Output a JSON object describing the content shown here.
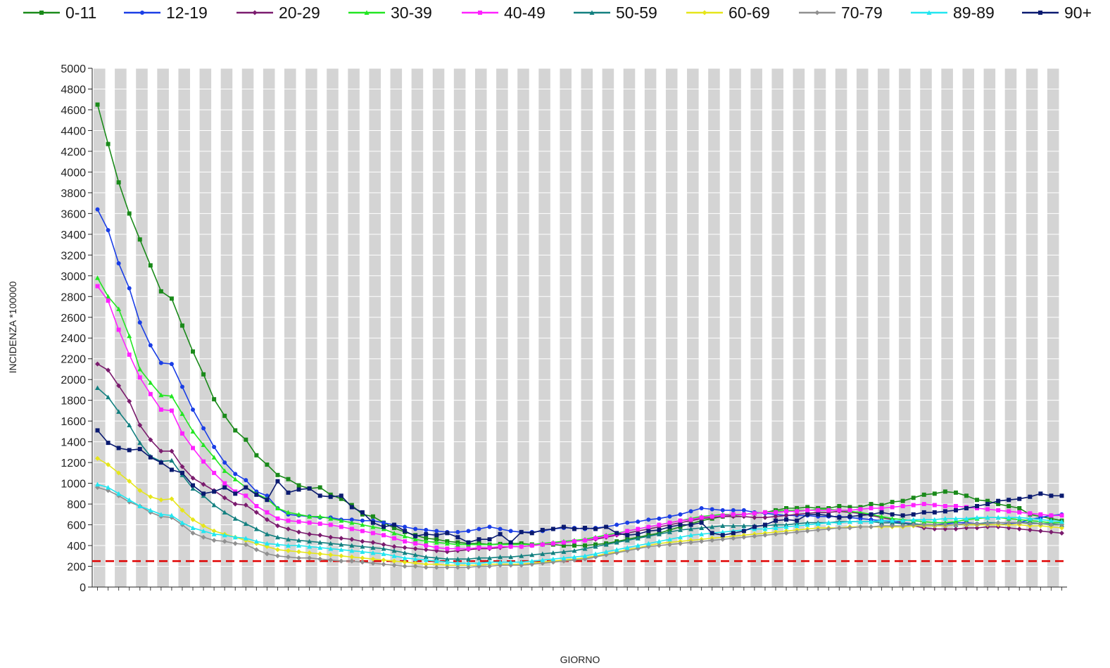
{
  "chart_data": {
    "type": "line",
    "title": "",
    "xlabel": "GIORNO",
    "ylabel": "INCIDENZA *100000",
    "ylim": [
      0,
      5000
    ],
    "yticks": [
      0,
      200,
      400,
      600,
      800,
      1000,
      1200,
      1400,
      1600,
      1800,
      2000,
      2200,
      2400,
      2600,
      2800,
      3000,
      3200,
      3400,
      3600,
      3800,
      4000,
      4200,
      4400,
      4600,
      4800,
      5000
    ],
    "grid": "alternating vertical bands",
    "legend_position": "top",
    "threshold": {
      "value": 250,
      "color": "#e00000",
      "style": "dashed"
    },
    "num_points": 92,
    "series": [
      {
        "name": "0-11",
        "color": "#1a8a1a",
        "marker": "square",
        "values": [
          4650,
          4270,
          3900,
          3600,
          3350,
          3100,
          2850,
          2780,
          2520,
          2270,
          2050,
          1810,
          1650,
          1510,
          1420,
          1270,
          1180,
          1080,
          1040,
          980,
          950,
          960,
          890,
          850,
          790,
          700,
          680,
          620,
          570,
          530,
          500,
          470,
          460,
          440,
          430,
          420,
          420,
          410,
          415,
          420,
          420,
          410,
          410,
          410,
          400,
          400,
          400,
          410,
          420,
          440,
          460,
          480,
          500,
          520,
          550,
          580,
          610,
          640,
          660,
          680,
          690,
          700,
          710,
          720,
          740,
          760,
          760,
          770,
          760,
          760,
          780,
          770,
          770,
          800,
          790,
          820,
          830,
          860,
          890,
          900,
          920,
          910,
          880,
          840,
          830,
          800,
          780,
          760,
          700,
          680,
          660,
          640
        ]
      },
      {
        "name": "12-19",
        "color": "#1a3ee6",
        "marker": "circle",
        "values": [
          3640,
          3440,
          3120,
          2880,
          2550,
          2330,
          2160,
          2150,
          1930,
          1710,
          1530,
          1350,
          1200,
          1090,
          1030,
          920,
          880,
          760,
          700,
          690,
          680,
          670,
          670,
          650,
          650,
          640,
          640,
          620,
          600,
          580,
          560,
          550,
          540,
          530,
          530,
          540,
          560,
          580,
          560,
          540,
          530,
          530,
          540,
          560,
          570,
          570,
          560,
          570,
          580,
          600,
          620,
          630,
          650,
          660,
          680,
          700,
          730,
          760,
          750,
          740,
          740,
          740,
          720,
          710,
          700,
          690,
          690,
          690,
          680,
          680,
          680,
          670,
          660,
          650,
          640,
          630,
          620,
          610,
          600,
          600,
          610,
          620,
          620,
          610,
          600,
          600,
          610,
          620,
          650,
          670,
          690,
          700
        ]
      },
      {
        "name": "20-29",
        "color": "#7b1c6e",
        "marker": "diamond",
        "values": [
          2150,
          2090,
          1940,
          1790,
          1560,
          1420,
          1310,
          1310,
          1160,
          1050,
          990,
          930,
          860,
          800,
          790,
          720,
          650,
          590,
          560,
          530,
          510,
          500,
          480,
          470,
          460,
          440,
          430,
          410,
          390,
          380,
          370,
          360,
          350,
          340,
          350,
          360,
          370,
          370,
          380,
          390,
          390,
          400,
          410,
          420,
          430,
          440,
          450,
          460,
          480,
          500,
          520,
          540,
          560,
          580,
          600,
          620,
          640,
          660,
          670,
          680,
          680,
          680,
          670,
          670,
          680,
          690,
          700,
          710,
          720,
          720,
          730,
          720,
          710,
          690,
          670,
          650,
          620,
          590,
          570,
          560,
          560,
          560,
          570,
          570,
          580,
          580,
          570,
          560,
          550,
          540,
          530,
          520
        ]
      },
      {
        "name": "30-39",
        "color": "#22e622",
        "marker": "triangle",
        "values": [
          2980,
          2800,
          2680,
          2420,
          2100,
          1970,
          1850,
          1840,
          1670,
          1500,
          1370,
          1250,
          1120,
          1040,
          960,
          900,
          850,
          760,
          720,
          700,
          680,
          680,
          660,
          640,
          620,
          600,
          580,
          560,
          520,
          490,
          460,
          440,
          430,
          420,
          410,
          410,
          410,
          410,
          410,
          410,
          410,
          410,
          420,
          430,
          440,
          450,
          460,
          480,
          500,
          520,
          540,
          560,
          580,
          600,
          620,
          640,
          660,
          680,
          690,
          700,
          700,
          700,
          710,
          720,
          730,
          740,
          740,
          740,
          750,
          750,
          740,
          730,
          720,
          700,
          680,
          660,
          650,
          640,
          630,
          620,
          620,
          630,
          650,
          660,
          670,
          670,
          660,
          650,
          640,
          630,
          620,
          620
        ]
      },
      {
        "name": "40-49",
        "color": "#ff22ff",
        "marker": "square",
        "values": [
          2900,
          2760,
          2480,
          2240,
          2020,
          1860,
          1710,
          1700,
          1480,
          1340,
          1210,
          1100,
          1000,
          920,
          880,
          780,
          720,
          660,
          640,
          630,
          620,
          610,
          600,
          580,
          560,
          540,
          520,
          500,
          470,
          440,
          420,
          400,
          380,
          370,
          370,
          370,
          380,
          380,
          390,
          390,
          390,
          400,
          410,
          420,
          430,
          440,
          450,
          470,
          490,
          510,
          540,
          560,
          580,
          600,
          620,
          640,
          650,
          670,
          680,
          690,
          700,
          700,
          710,
          720,
          720,
          730,
          730,
          740,
          740,
          740,
          740,
          740,
          750,
          760,
          760,
          770,
          780,
          790,
          800,
          790,
          780,
          780,
          770,
          760,
          750,
          740,
          730,
          720,
          710,
          700,
          690,
          690
        ]
      },
      {
        "name": "50-59",
        "color": "#138080",
        "marker": "triangle",
        "values": [
          1920,
          1830,
          1690,
          1560,
          1390,
          1260,
          1210,
          1220,
          1080,
          950,
          880,
          790,
          720,
          660,
          610,
          560,
          510,
          480,
          460,
          450,
          440,
          430,
          420,
          410,
          400,
          390,
          380,
          370,
          350,
          330,
          310,
          290,
          280,
          270,
          270,
          270,
          280,
          280,
          290,
          290,
          300,
          310,
          320,
          330,
          340,
          350,
          370,
          390,
          410,
          430,
          450,
          470,
          490,
          510,
          530,
          550,
          560,
          570,
          580,
          590,
          590,
          590,
          590,
          590,
          600,
          600,
          610,
          620,
          620,
          620,
          630,
          630,
          630,
          630,
          620,
          620,
          610,
          610,
          600,
          600,
          600,
          600,
          610,
          610,
          620,
          620,
          620,
          620,
          620,
          610,
          610,
          600
        ]
      },
      {
        "name": "60-69",
        "color": "#e6e61a",
        "marker": "diamond",
        "values": [
          1240,
          1180,
          1100,
          1020,
          930,
          870,
          840,
          850,
          740,
          650,
          590,
          540,
          510,
          480,
          450,
          420,
          390,
          360,
          350,
          340,
          330,
          320,
          310,
          300,
          290,
          280,
          270,
          260,
          250,
          240,
          230,
          220,
          220,
          210,
          210,
          210,
          210,
          220,
          220,
          220,
          220,
          230,
          240,
          250,
          260,
          270,
          280,
          300,
          320,
          340,
          360,
          380,
          400,
          420,
          430,
          440,
          450,
          460,
          470,
          480,
          490,
          500,
          510,
          520,
          530,
          540,
          550,
          560,
          570,
          570,
          570,
          580,
          580,
          580,
          580,
          580,
          580,
          590,
          590,
          590,
          590,
          600,
          600,
          600,
          600,
          600,
          600,
          600,
          590,
          590,
          580,
          570
        ]
      },
      {
        "name": "70-79",
        "color": "#909090",
        "marker": "diamond",
        "values": [
          960,
          930,
          880,
          820,
          780,
          720,
          680,
          670,
          600,
          520,
          480,
          450,
          440,
          420,
          410,
          360,
          320,
          300,
          290,
          280,
          280,
          270,
          260,
          250,
          250,
          240,
          230,
          220,
          210,
          200,
          200,
          190,
          190,
          190,
          190,
          190,
          200,
          200,
          210,
          210,
          210,
          220,
          230,
          240,
          250,
          260,
          270,
          290,
          310,
          330,
          350,
          370,
          390,
          400,
          410,
          420,
          430,
          440,
          450,
          460,
          470,
          480,
          490,
          500,
          510,
          520,
          530,
          540,
          550,
          560,
          570,
          570,
          580,
          580,
          590,
          590,
          590,
          600,
          600,
          600,
          600,
          600,
          610,
          610,
          610,
          620,
          620,
          620,
          610,
          610,
          600,
          600
        ]
      },
      {
        "name": "89-89",
        "color": "#22e6f0",
        "marker": "triangle",
        "values": [
          990,
          960,
          900,
          840,
          780,
          740,
          700,
          690,
          620,
          570,
          540,
          510,
          500,
          480,
          470,
          440,
          420,
          410,
          400,
          400,
          390,
          380,
          370,
          360,
          350,
          340,
          330,
          320,
          300,
          280,
          270,
          260,
          250,
          240,
          230,
          230,
          230,
          240,
          240,
          240,
          240,
          250,
          260,
          270,
          280,
          290,
          300,
          320,
          340,
          360,
          380,
          400,
          420,
          440,
          460,
          480,
          500,
          510,
          520,
          530,
          540,
          550,
          560,
          560,
          570,
          580,
          590,
          600,
          610,
          620,
          620,
          630,
          630,
          630,
          640,
          640,
          640,
          650,
          650,
          650,
          660,
          660,
          660,
          670,
          670,
          670,
          670,
          670,
          660,
          650,
          640,
          630
        ]
      },
      {
        "name": "90+",
        "color": "#0a1a70",
        "marker": "square",
        "values": [
          1510,
          1390,
          1340,
          1320,
          1330,
          1250,
          1200,
          1130,
          1100,
          980,
          900,
          920,
          960,
          900,
          960,
          890,
          840,
          1020,
          910,
          940,
          950,
          880,
          870,
          880,
          770,
          720,
          620,
          580,
          600,
          540,
          490,
          510,
          500,
          520,
          480,
          430,
          460,
          460,
          510,
          430,
          530,
          520,
          550,
          560,
          580,
          560,
          570,
          560,
          580,
          520,
          500,
          510,
          540,
          550,
          580,
          600,
          600,
          620,
          520,
          500,
          520,
          540,
          580,
          600,
          640,
          650,
          640,
          700,
          700,
          690,
          670,
          680,
          690,
          700,
          720,
          700,
          690,
          700,
          720,
          720,
          730,
          740,
          760,
          780,
          800,
          830,
          840,
          850,
          870,
          900,
          880,
          880
        ]
      }
    ]
  }
}
